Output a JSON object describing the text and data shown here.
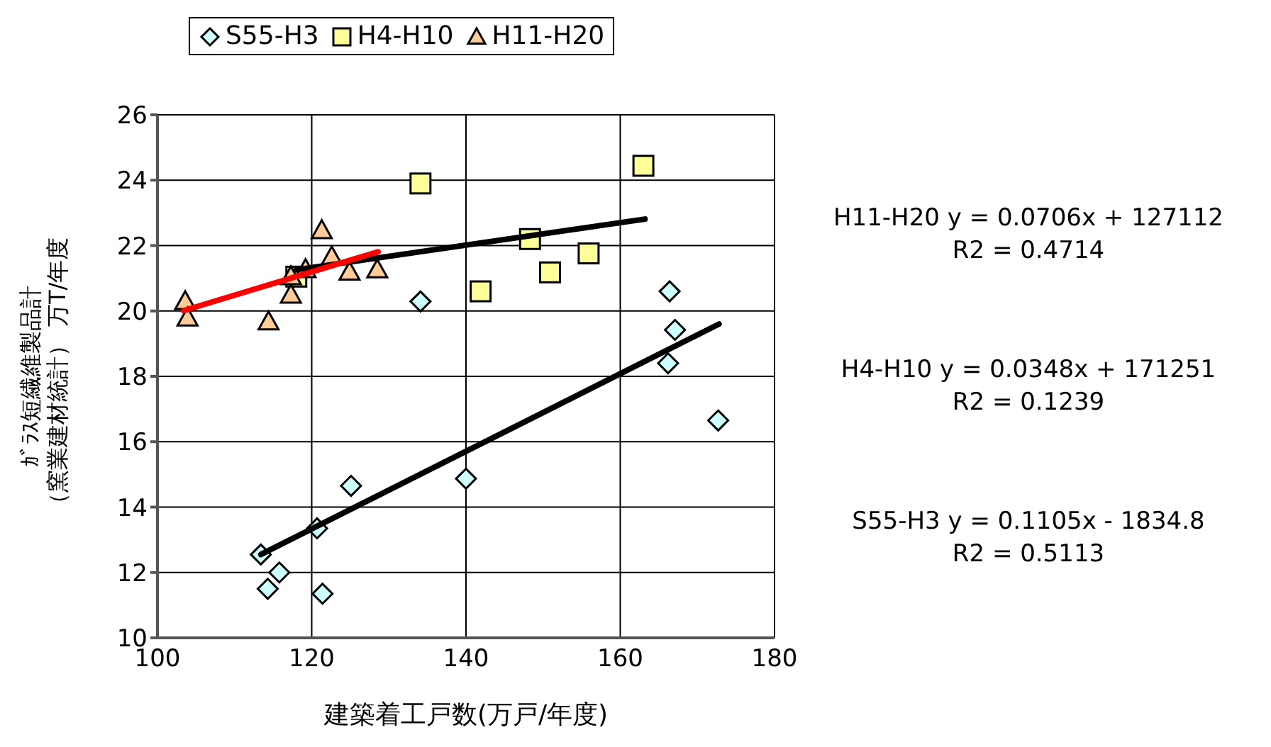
{
  "chart_data": {
    "type": "scatter",
    "xlabel": "建築着工戸数(万戸/年度)",
    "ylabel": "ｶﾞﾗｽ短繊維製品計（窯業建材統計） 万T/年度",
    "xlim": [
      100,
      180
    ],
    "xticks": [
      100,
      120,
      140,
      160,
      180
    ],
    "ylim": [
      10,
      26
    ],
    "yticks": [
      10,
      12,
      14,
      16,
      18,
      20,
      22,
      24,
      26
    ],
    "grid": true,
    "legend": "top",
    "annotations": [
      "H11-H20 y = 0.0706x + 127112",
      "R2 = 0.4714",
      "H4-H10 y = 0.0348x + 171251",
      "R2 = 0.1239",
      "S55-H3 y = 0.1105x - 1834.8",
      "R2 = 0.5113"
    ],
    "series": [
      {
        "name": "S55-H3",
        "marker": "diamond",
        "color": "#ccffff",
        "x": [
          113.4,
          115.8,
          114.3,
          120.7,
          121.4,
          125.1,
          140.0,
          134.1,
          166.2,
          172.7,
          166.4,
          167.1
        ],
        "values": [
          12.55,
          12.0,
          11.5,
          13.35,
          11.35,
          14.65,
          14.87,
          20.29,
          18.4,
          16.65,
          20.6,
          19.42
        ]
      },
      {
        "name": "H4-H10",
        "marker": "square",
        "color": "#ffff99",
        "x": [
          134.1,
          163.0,
          148.3,
          155.9,
          150.9,
          141.9,
          118.0
        ],
        "values": [
          23.9,
          24.44,
          22.2,
          21.76,
          21.18,
          20.6,
          21.05
        ]
      },
      {
        "name": "H11-H20",
        "marker": "triangle",
        "color": "#ffcc99",
        "x": [
          103.6,
          103.9,
          114.4,
          117.3,
          117.3,
          119.2,
          121.3,
          122.6,
          124.9,
          128.5
        ],
        "values": [
          20.3,
          19.8,
          19.68,
          20.5,
          21.06,
          21.28,
          22.47,
          21.67,
          21.2,
          21.27
        ]
      },
      {
        "type": "line",
        "marker": "none",
        "line_style": "solid",
        "color": "#000000",
        "x": [
          118.0,
          163.2
        ],
        "values": [
          21.26,
          22.81
        ]
      },
      {
        "type": "line",
        "marker": "none",
        "line_style": "solid",
        "color": "#000000",
        "x": [
          113.4,
          172.8
        ],
        "values": [
          12.55,
          19.6
        ]
      },
      {
        "type": "line",
        "marker": "none",
        "line_style": "solid",
        "color": "#ff0000",
        "x": [
          103.4,
          128.6
        ],
        "values": [
          20.01,
          21.81
        ]
      }
    ]
  }
}
